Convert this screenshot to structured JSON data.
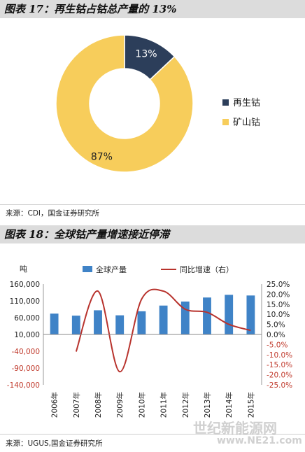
{
  "figure1": {
    "title": "图表 17：再生钴占钴总产量的 13%",
    "source": "来源：CDI，国金证券研究所"
  },
  "figure2": {
    "title": "图表 18：全球钴产量增速接近停滞",
    "source": "来源：UGUS,国金证券研究所",
    "unit_label": "吨"
  },
  "watermark": {
    "text1": "世纪新能源网",
    "text2": "www.NE21.com"
  },
  "colors": {
    "recycled": "#2c3e5a",
    "mined": "#f7cd5b",
    "bar": "#3f83c7",
    "line": "#b8332d"
  },
  "chart_data": [
    {
      "type": "pie",
      "donut": true,
      "labels": [
        "再生钴",
        "矿山钴"
      ],
      "values": [
        13,
        87
      ],
      "value_labels": [
        "13%",
        "87%"
      ],
      "legend_position": "right"
    },
    {
      "type": "bar",
      "categories": [
        "2006年",
        "2007年",
        "2008年",
        "2009年",
        "2010年",
        "2011年",
        "2012年",
        "2013年",
        "2014年",
        "2015年"
      ],
      "series": [
        {
          "name": "全球产量",
          "type": "bar",
          "axis": "left",
          "values": [
            72000,
            66000,
            82000,
            67000,
            79000,
            96000,
            108000,
            120000,
            128000,
            126000
          ]
        },
        {
          "name": "同比增速（右）",
          "type": "line",
          "axis": "right",
          "values": [
            null,
            -8.5,
            21.5,
            -18.5,
            17.5,
            21.5,
            12.5,
            11.0,
            5.0,
            2.0
          ]
        }
      ],
      "ylim": [
        -140000,
        160000
      ],
      "yticks": [
        "160,000",
        "110,000",
        "60,000",
        "10,000",
        "-40,000",
        "-90,000",
        "-140,000"
      ],
      "y2lim": [
        -25,
        25
      ],
      "y2ticks": [
        "25.0%",
        "20.0%",
        "15.0%",
        "10.0%",
        "5.0%",
        "0.0%",
        "-5.0%",
        "-10.0%",
        "-15.0%",
        "-20.0%",
        "-25.0%"
      ],
      "legend_position": "top"
    }
  ]
}
